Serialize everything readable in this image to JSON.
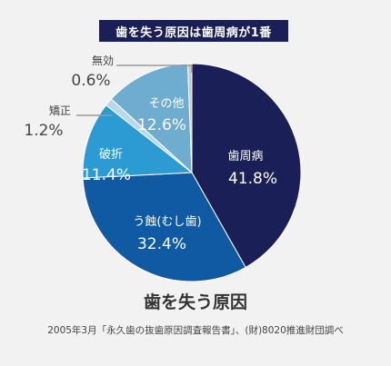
{
  "header": {
    "banner": "歯を失う原因は歯周病が1番"
  },
  "chart_data": {
    "type": "pie",
    "title": "歯を失う原因",
    "source": "2005年3月「永久歯の抜歯原因調査報告書」、(財)8020推進財団調べ",
    "slices": [
      {
        "name": "歯周病",
        "value": 41.8,
        "value_label": "41.8%",
        "color": "#1b1f57"
      },
      {
        "name": "う蝕(むし歯)",
        "value": 32.4,
        "value_label": "32.4%",
        "color": "#0f5aa2"
      },
      {
        "name": "破折",
        "value": 11.4,
        "value_label": "11.4%",
        "color": "#2d9bd3"
      },
      {
        "name": "矯正",
        "value": 1.2,
        "value_label": "1.2%",
        "color": "#b9d8e8"
      },
      {
        "name": "その他",
        "value": 12.6,
        "value_label": "12.6%",
        "color": "#6fadd0"
      },
      {
        "name": "無効",
        "value": 0.6,
        "value_label": "0.6%",
        "color": "#c7c7c7"
      }
    ]
  }
}
